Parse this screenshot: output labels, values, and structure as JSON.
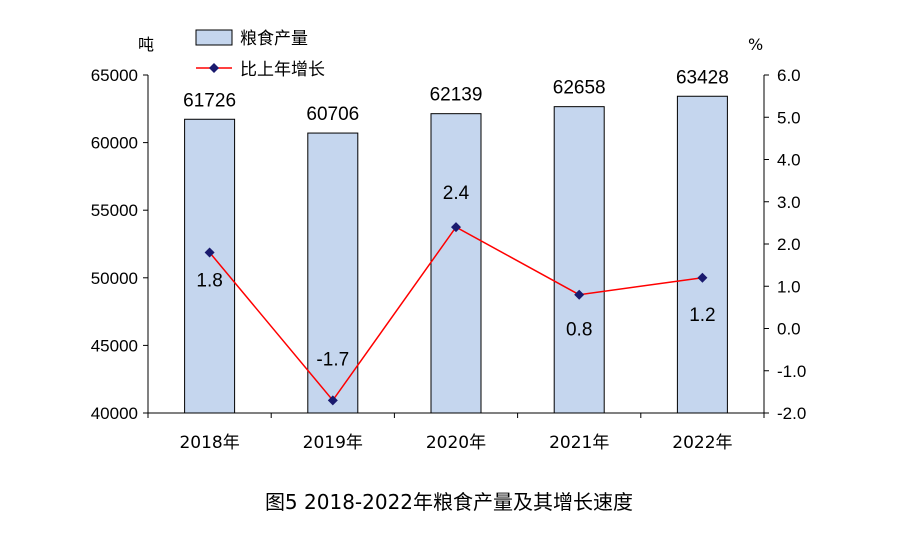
{
  "chart_data": {
    "type": "bar",
    "title": "图5 2018-2022年粮食产量及其增长速度",
    "categories": [
      "2018年",
      "2019年",
      "2020年",
      "2021年",
      "2022年"
    ],
    "series": [
      {
        "name": "粮食产量",
        "type": "bar",
        "axis": "left",
        "values": [
          61726,
          60706,
          62139,
          62658,
          63428
        ],
        "color": "#c5d6ee",
        "edge_color": "#000000"
      },
      {
        "name": "比上年增长",
        "type": "line",
        "axis": "right",
        "values": [
          1.8,
          -1.7,
          2.4,
          0.8,
          1.2
        ],
        "color": "#ff0000",
        "marker_color": "#1a1a6e"
      }
    ],
    "bar_labels": [
      "61726",
      "60706",
      "62139",
      "62658",
      "63428"
    ],
    "line_labels": [
      "1.8",
      "-1.7",
      "2.4",
      "0.8",
      "1.2"
    ],
    "left_axis": {
      "unit": "吨",
      "ylim": [
        40000,
        65000
      ],
      "ticks": [
        40000,
        45000,
        50000,
        55000,
        60000,
        65000
      ],
      "tick_labels": [
        "40000",
        "45000",
        "50000",
        "55000",
        "60000",
        "65000"
      ]
    },
    "right_axis": {
      "unit": "%",
      "ylim": [
        -2.0,
        6.0
      ],
      "ticks": [
        -2.0,
        -1.0,
        0.0,
        1.0,
        2.0,
        3.0,
        4.0,
        5.0,
        6.0
      ],
      "tick_labels": [
        "-2.0",
        "-1.0",
        "0.0",
        "1.0",
        "2.0",
        "3.0",
        "4.0",
        "5.0",
        "6.0"
      ]
    },
    "legend": {
      "position": "top-left",
      "entries": [
        "粮食产量",
        "比上年增长"
      ]
    },
    "grid": false
  }
}
